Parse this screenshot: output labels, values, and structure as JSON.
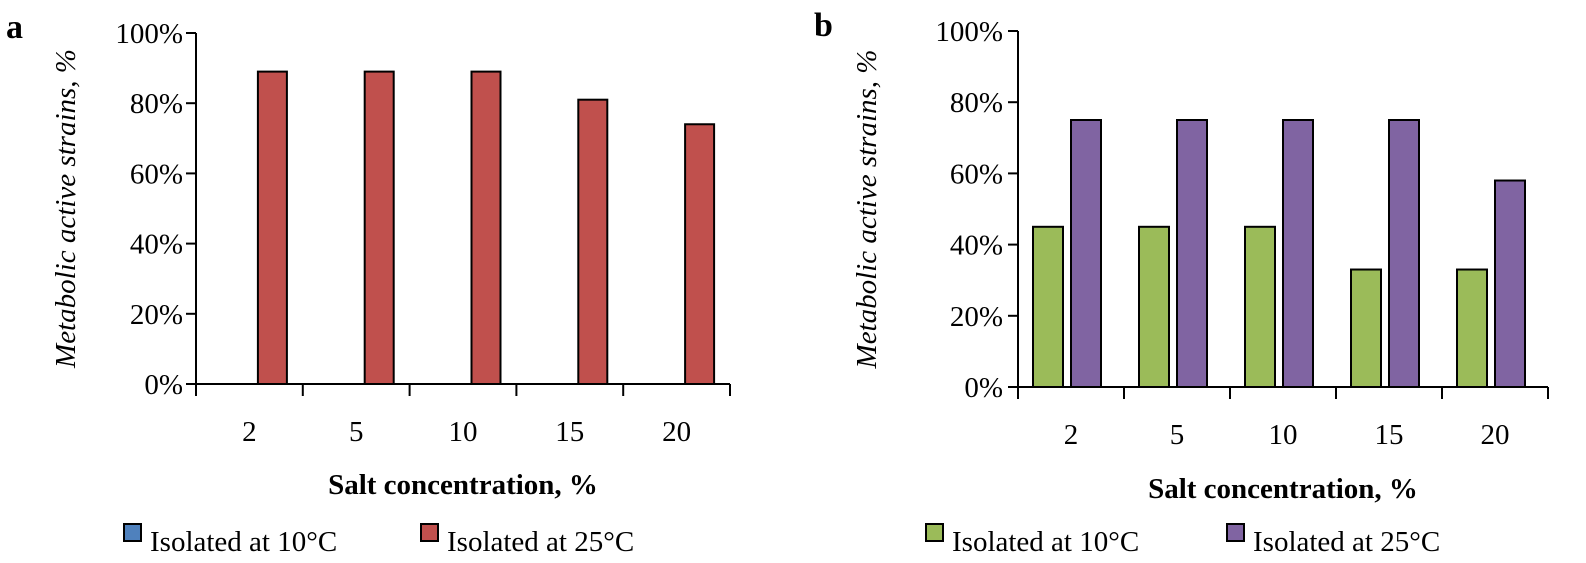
{
  "chart_data": [
    {
      "type": "bar",
      "panel_label": "a",
      "categories": [
        "2",
        "5",
        "10",
        "15",
        "20"
      ],
      "series": [
        {
          "name": "Isolated at 10°C",
          "color": "#4f81bd",
          "values": [
            0,
            0,
            0,
            0,
            0
          ]
        },
        {
          "name": "Isolated at 25°C",
          "color": "#c0504d",
          "values": [
            89,
            89,
            89,
            81,
            74
          ]
        }
      ],
      "title": "",
      "xlabel": "Salt concentration, %",
      "ylabel": "Metabolic active strains, %",
      "ylim": [
        0,
        100
      ],
      "yticks": [
        "0%",
        "20%",
        "40%",
        "60%",
        "80%",
        "100%"
      ],
      "ytick_values": [
        0,
        20,
        40,
        60,
        80,
        100
      ],
      "grid": false,
      "legend_position": "bottom"
    },
    {
      "type": "bar",
      "panel_label": "b",
      "categories": [
        "2",
        "5",
        "10",
        "15",
        "20"
      ],
      "series": [
        {
          "name": "Isolated at 10°C",
          "color": "#9bbb59",
          "values": [
            45,
            45,
            45,
            33,
            33
          ]
        },
        {
          "name": "Isolated at 25°C",
          "color": "#8064a2",
          "values": [
            75,
            75,
            75,
            75,
            58
          ]
        }
      ],
      "title": "",
      "xlabel": "Salt concentration, %",
      "ylabel": "Metabolic active strains, %",
      "ylim": [
        0,
        100
      ],
      "yticks": [
        "0%",
        "20%",
        "40%",
        "60%",
        "80%",
        "100%"
      ],
      "ytick_values": [
        0,
        20,
        40,
        60,
        80,
        100
      ],
      "grid": false,
      "legend_position": "bottom"
    }
  ]
}
